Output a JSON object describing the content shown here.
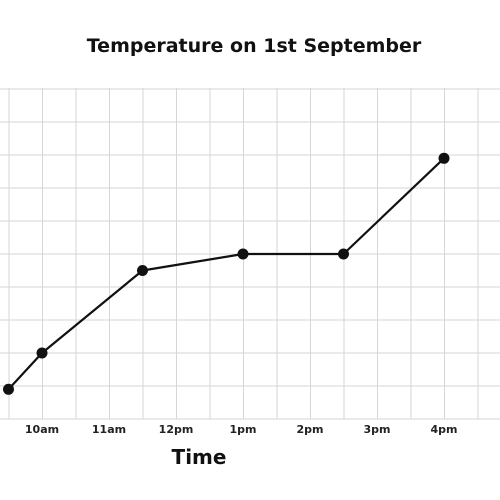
{
  "chart_data": {
    "type": "line",
    "title": "Temperature on 1st September",
    "xlabel": "Time",
    "ylabel": "",
    "categories": [
      "10am",
      "11am",
      "12pm",
      "1pm",
      "2pm",
      "3pm",
      "4pm"
    ],
    "series": [
      {
        "x": [
          9.5,
          10,
          11.5,
          13,
          14.5,
          16
        ],
        "y": [
          0.45,
          1.0,
          2.25,
          2.5,
          2.5,
          3.95
        ]
      }
    ],
    "grid": true,
    "colors": {
      "line": "#111111",
      "grid": "#d6d6d6",
      "marker": "#111111"
    }
  }
}
